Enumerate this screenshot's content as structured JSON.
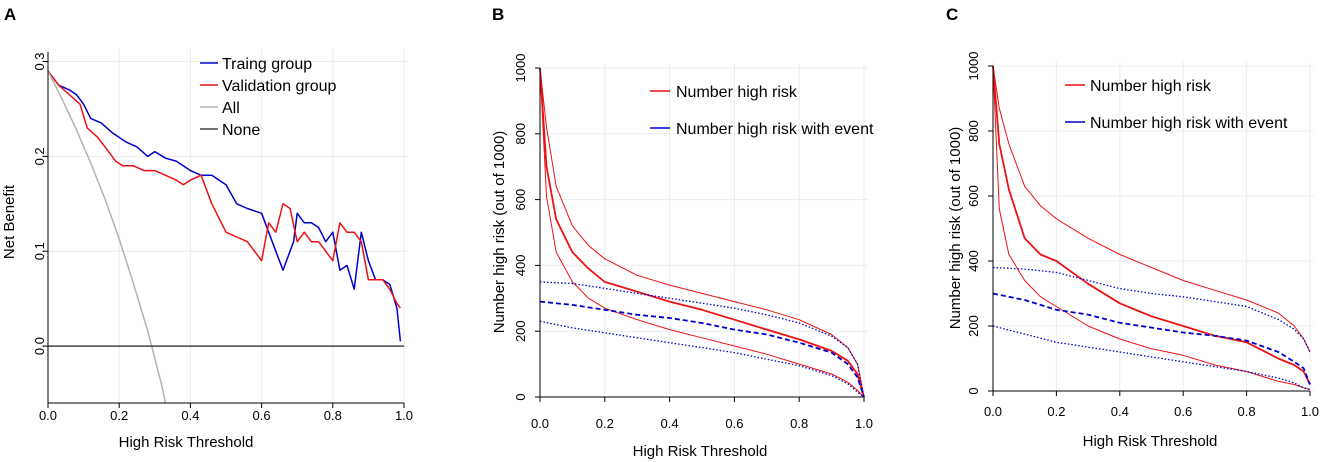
{
  "chart_data": [
    {
      "panel": "A",
      "type": "line",
      "title": "",
      "xlabel": "High Risk Threshold",
      "ylabel": "Net Benefit",
      "xlim": [
        0,
        1
      ],
      "ylim": [
        -0.06,
        0.31
      ],
      "xticks": [
        0,
        0.2,
        0.4,
        0.6,
        0.8,
        1
      ],
      "xtick_labels": [
        "0.0",
        "0.2",
        "0.4",
        "0.6",
        "0.8",
        "1.0"
      ],
      "yticks": [
        0,
        0.1,
        0.2,
        0.3
      ],
      "ytick_labels": [
        "0.0",
        "0.1",
        "0.2",
        "0.3"
      ],
      "legend_position": "top-right",
      "series": [
        {
          "name": "Traing group",
          "color": "#0000cc",
          "style": "solid",
          "x": [
            0,
            0.03,
            0.06,
            0.08,
            0.1,
            0.12,
            0.15,
            0.18,
            0.2,
            0.22,
            0.25,
            0.28,
            0.3,
            0.33,
            0.36,
            0.38,
            0.4,
            0.43,
            0.46,
            0.5,
            0.53,
            0.56,
            0.6,
            0.62,
            0.64,
            0.66,
            0.67,
            0.69,
            0.7,
            0.72,
            0.74,
            0.76,
            0.78,
            0.8,
            0.82,
            0.84,
            0.86,
            0.88,
            0.9,
            0.92,
            0.94,
            0.96,
            0.98,
            0.99
          ],
          "values": [
            0.29,
            0.275,
            0.27,
            0.265,
            0.255,
            0.24,
            0.235,
            0.225,
            0.22,
            0.215,
            0.21,
            0.2,
            0.205,
            0.198,
            0.195,
            0.19,
            0.185,
            0.18,
            0.18,
            0.17,
            0.15,
            0.145,
            0.14,
            0.12,
            0.1,
            0.08,
            0.09,
            0.11,
            0.14,
            0.13,
            0.13,
            0.125,
            0.11,
            0.12,
            0.08,
            0.085,
            0.06,
            0.12,
            0.09,
            0.07,
            0.07,
            0.065,
            0.04,
            0.005
          ]
        },
        {
          "name": "Validation group",
          "color": "#ee1111",
          "style": "solid",
          "x": [
            0,
            0.03,
            0.06,
            0.09,
            0.11,
            0.14,
            0.17,
            0.19,
            0.21,
            0.24,
            0.27,
            0.3,
            0.33,
            0.36,
            0.38,
            0.4,
            0.43,
            0.46,
            0.5,
            0.53,
            0.56,
            0.58,
            0.6,
            0.62,
            0.64,
            0.66,
            0.68,
            0.7,
            0.72,
            0.74,
            0.76,
            0.78,
            0.8,
            0.82,
            0.84,
            0.86,
            0.88,
            0.9,
            0.92,
            0.94,
            0.96,
            0.98,
            0.99
          ],
          "values": [
            0.29,
            0.275,
            0.265,
            0.255,
            0.23,
            0.22,
            0.205,
            0.195,
            0.19,
            0.19,
            0.185,
            0.185,
            0.18,
            0.175,
            0.17,
            0.175,
            0.18,
            0.15,
            0.12,
            0.115,
            0.11,
            0.1,
            0.09,
            0.13,
            0.12,
            0.15,
            0.145,
            0.11,
            0.12,
            0.11,
            0.11,
            0.1,
            0.09,
            0.13,
            0.12,
            0.12,
            0.11,
            0.07,
            0.07,
            0.07,
            0.06,
            0.045,
            0.04
          ]
        },
        {
          "name": "All",
          "color": "#b3b3b3",
          "style": "solid",
          "x": [
            0,
            0.04,
            0.08,
            0.12,
            0.16,
            0.2,
            0.24,
            0.28,
            0.32,
            0.33
          ],
          "values": [
            0.29,
            0.26,
            0.228,
            0.193,
            0.155,
            0.113,
            0.066,
            0.016,
            -0.042,
            -0.06
          ]
        },
        {
          "name": "None",
          "color": "#444444",
          "style": "solid",
          "x": [
            0,
            1
          ],
          "values": [
            0,
            0
          ]
        }
      ]
    },
    {
      "panel": "B",
      "type": "line",
      "title": "",
      "xlabel": "High Risk Threshold",
      "ylabel": "Number high risk (out of 1000)",
      "xlim": [
        0,
        1
      ],
      "ylim": [
        0,
        1000
      ],
      "xticks": [
        0,
        0.2,
        0.4,
        0.6,
        0.8,
        1
      ],
      "xtick_labels": [
        "0.0",
        "0.2",
        "0.4",
        "0.6",
        "0.8",
        "1.0"
      ],
      "yticks": [
        0,
        200,
        400,
        600,
        800,
        1000
      ],
      "ytick_labels": [
        "0",
        "200",
        "400",
        "600",
        "800",
        "1000"
      ],
      "legend_position": "top-right",
      "legend": [
        {
          "name": "Number high risk",
          "color": "#ee1111"
        },
        {
          "name": "Number high risk with event",
          "color": "#0000cc"
        }
      ],
      "series": [
        {
          "name": "Number high risk (upper CI)",
          "color": "#ee1111",
          "style": "thin",
          "x": [
            0,
            0.02,
            0.05,
            0.1,
            0.15,
            0.2,
            0.3,
            0.4,
            0.5,
            0.6,
            0.7,
            0.8,
            0.9,
            0.95,
            0.98,
            1
          ],
          "values": [
            1000,
            820,
            640,
            520,
            460,
            420,
            370,
            340,
            315,
            290,
            265,
            235,
            190,
            150,
            100,
            0
          ]
        },
        {
          "name": "Number high risk",
          "color": "#ee1111",
          "style": "thick",
          "x": [
            0,
            0.02,
            0.05,
            0.1,
            0.15,
            0.2,
            0.3,
            0.4,
            0.5,
            0.6,
            0.7,
            0.8,
            0.9,
            0.95,
            0.98,
            1
          ],
          "values": [
            1000,
            700,
            540,
            440,
            390,
            350,
            320,
            290,
            265,
            235,
            205,
            175,
            140,
            110,
            70,
            0
          ]
        },
        {
          "name": "Number high risk (lower CI)",
          "color": "#ee1111",
          "style": "thin",
          "x": [
            0,
            0.02,
            0.05,
            0.1,
            0.15,
            0.2,
            0.3,
            0.4,
            0.5,
            0.6,
            0.7,
            0.8,
            0.9,
            0.95,
            0.98,
            1
          ],
          "values": [
            1000,
            610,
            440,
            350,
            300,
            270,
            235,
            205,
            180,
            155,
            130,
            100,
            70,
            45,
            20,
            0
          ]
        },
        {
          "name": "Number high risk with event (upper CI)",
          "color": "#0000cc",
          "style": "dotted",
          "x": [
            0,
            0.1,
            0.2,
            0.3,
            0.4,
            0.5,
            0.6,
            0.7,
            0.8,
            0.9,
            0.95,
            0.98,
            1
          ],
          "values": [
            350,
            345,
            330,
            315,
            300,
            285,
            270,
            250,
            225,
            185,
            150,
            100,
            0
          ]
        },
        {
          "name": "Number high risk with event",
          "color": "#0000cc",
          "style": "dashed",
          "x": [
            0,
            0.1,
            0.2,
            0.3,
            0.4,
            0.5,
            0.6,
            0.7,
            0.8,
            0.9,
            0.95,
            0.98,
            1
          ],
          "values": [
            290,
            280,
            265,
            250,
            240,
            225,
            205,
            190,
            165,
            135,
            100,
            60,
            0
          ]
        },
        {
          "name": "Number high risk with event (lower CI)",
          "color": "#0000cc",
          "style": "dotted",
          "x": [
            0,
            0.1,
            0.2,
            0.3,
            0.4,
            0.5,
            0.6,
            0.7,
            0.8,
            0.9,
            0.95,
            0.98,
            1
          ],
          "values": [
            230,
            210,
            195,
            180,
            165,
            150,
            135,
            115,
            95,
            65,
            40,
            15,
            0
          ]
        }
      ]
    },
    {
      "panel": "C",
      "type": "line",
      "title": "",
      "xlabel": "High Risk Threshold",
      "ylabel": "Number high risk (out of 1000)",
      "xlim": [
        0,
        1
      ],
      "ylim": [
        0,
        1000
      ],
      "xticks": [
        0,
        0.2,
        0.4,
        0.6,
        0.8,
        1
      ],
      "xtick_labels": [
        "0.0",
        "0.2",
        "0.4",
        "0.6",
        "0.8",
        "1.0"
      ],
      "yticks": [
        0,
        200,
        400,
        600,
        800,
        1000
      ],
      "ytick_labels": [
        "0",
        "200",
        "400",
        "600",
        "800",
        "1000"
      ],
      "legend_position": "top-right",
      "legend": [
        {
          "name": "Number high risk",
          "color": "#ee1111"
        },
        {
          "name": "Number high risk with event",
          "color": "#0000cc"
        }
      ],
      "series": [
        {
          "name": "Number high risk (upper CI)",
          "color": "#ee1111",
          "style": "thin",
          "x": [
            0,
            0.02,
            0.05,
            0.1,
            0.15,
            0.2,
            0.3,
            0.4,
            0.5,
            0.6,
            0.7,
            0.8,
            0.9,
            0.95,
            0.98,
            1
          ],
          "values": [
            1000,
            870,
            760,
            630,
            570,
            530,
            470,
            420,
            380,
            340,
            310,
            280,
            240,
            200,
            160,
            120
          ]
        },
        {
          "name": "Number high risk",
          "color": "#ee1111",
          "style": "thick",
          "x": [
            0,
            0.02,
            0.05,
            0.1,
            0.15,
            0.2,
            0.3,
            0.4,
            0.5,
            0.6,
            0.7,
            0.8,
            0.9,
            0.95,
            0.98,
            1
          ],
          "values": [
            1000,
            760,
            620,
            470,
            420,
            400,
            330,
            270,
            230,
            200,
            170,
            150,
            100,
            80,
            60,
            20
          ]
        },
        {
          "name": "Number high risk (lower CI)",
          "color": "#ee1111",
          "style": "thin",
          "x": [
            0,
            0.02,
            0.05,
            0.1,
            0.15,
            0.2,
            0.3,
            0.4,
            0.5,
            0.6,
            0.7,
            0.8,
            0.9,
            0.95,
            0.98,
            1
          ],
          "values": [
            1000,
            560,
            420,
            340,
            290,
            260,
            200,
            160,
            130,
            110,
            80,
            60,
            30,
            20,
            10,
            5
          ]
        },
        {
          "name": "Number high risk with event (upper CI)",
          "color": "#0000cc",
          "style": "dotted",
          "x": [
            0,
            0.1,
            0.2,
            0.3,
            0.4,
            0.5,
            0.6,
            0.7,
            0.8,
            0.9,
            0.95,
            0.98,
            1
          ],
          "values": [
            380,
            375,
            365,
            340,
            315,
            300,
            290,
            275,
            260,
            220,
            190,
            160,
            120
          ]
        },
        {
          "name": "Number high risk with event",
          "color": "#0000cc",
          "style": "dashed",
          "x": [
            0,
            0.1,
            0.2,
            0.3,
            0.4,
            0.5,
            0.6,
            0.7,
            0.8,
            0.9,
            0.95,
            0.98,
            1
          ],
          "values": [
            300,
            280,
            250,
            235,
            210,
            195,
            180,
            170,
            155,
            120,
            90,
            70,
            20
          ]
        },
        {
          "name": "Number high risk with event (lower CI)",
          "color": "#0000cc",
          "style": "dotted",
          "x": [
            0,
            0.1,
            0.2,
            0.3,
            0.4,
            0.5,
            0.6,
            0.7,
            0.8,
            0.9,
            0.95,
            0.98,
            1
          ],
          "values": [
            200,
            175,
            150,
            135,
            120,
            105,
            90,
            75,
            60,
            40,
            25,
            10,
            5
          ]
        }
      ]
    }
  ]
}
